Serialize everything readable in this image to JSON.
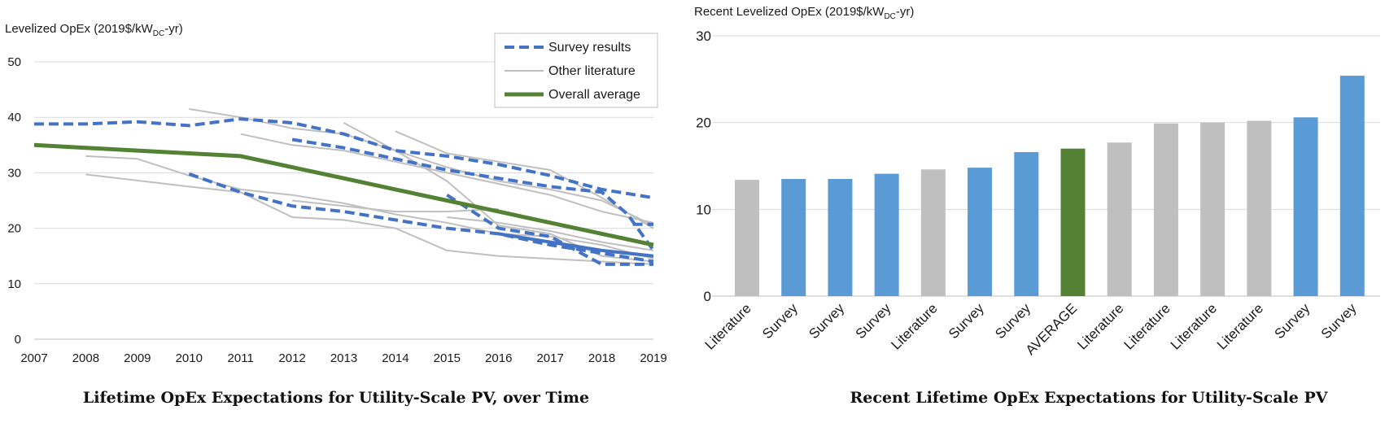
{
  "charts": [
    {
      "type": "line",
      "ylabel_main": "Levelized OpEx (2019$/kW",
      "ylabel_sub": "DC",
      "ylabel_tail": "-yr)",
      "caption": "Lifetime OpEx Expectations for Utility-Scale PV, over Time",
      "xlim": [
        2007,
        2019
      ],
      "ylim": [
        0,
        50
      ],
      "x_ticks": [
        "2007",
        "2008",
        "2009",
        "2010",
        "2011",
        "2012",
        "2013",
        "2014",
        "2015",
        "2016",
        "2017",
        "2018",
        "2019"
      ],
      "y_ticks": [
        "0",
        "10",
        "20",
        "30",
        "40",
        "50"
      ],
      "legend": {
        "placement": "top-right",
        "entries": [
          {
            "label": "Survey results",
            "style": "survey"
          },
          {
            "label": "Other literature",
            "style": "literature"
          },
          {
            "label": "Overall average",
            "style": "average"
          }
        ]
      },
      "colors": {
        "survey": "#4472c4",
        "literature": "#bfbfbf",
        "average": "#548235",
        "grid": "#d9d9d9"
      },
      "series": [
        {
          "group": "literature",
          "points": [
            [
              2008,
              33
            ],
            [
              2009,
              32.5
            ],
            [
              2010,
              29.5
            ],
            [
              2011,
              27
            ],
            [
              2012,
              26
            ],
            [
              2013,
              24.5
            ],
            [
              2014,
              22.5
            ],
            [
              2015,
              21
            ],
            [
              2016,
              19
            ],
            [
              2017,
              18.5
            ],
            [
              2018,
              17
            ],
            [
              2019,
              14.5
            ]
          ]
        },
        {
          "group": "literature",
          "points": [
            [
              2008,
              29.7
            ],
            [
              2010,
              27.5
            ],
            [
              2011,
              26.5
            ],
            [
              2012,
              22
            ],
            [
              2013,
              21.5
            ],
            [
              2014,
              20
            ],
            [
              2015,
              16
            ],
            [
              2016,
              15
            ],
            [
              2017,
              14.5
            ],
            [
              2018,
              14
            ],
            [
              2019,
              13.5
            ]
          ]
        },
        {
          "group": "literature",
          "points": [
            [
              2010,
              41.5
            ],
            [
              2011,
              40
            ],
            [
              2012,
              38
            ],
            [
              2013,
              37
            ],
            [
              2014,
              34
            ],
            [
              2015,
              31
            ],
            [
              2016,
              28.5
            ],
            [
              2017,
              27
            ],
            [
              2018,
              25
            ],
            [
              2019,
              20.5
            ]
          ]
        },
        {
          "group": "literature",
          "points": [
            [
              2011,
              37
            ],
            [
              2012,
              35
            ],
            [
              2013,
              34
            ],
            [
              2014,
              32
            ],
            [
              2015,
              30
            ],
            [
              2016,
              28
            ],
            [
              2017,
              26
            ],
            [
              2018,
              23
            ],
            [
              2019,
              21
            ]
          ]
        },
        {
          "group": "literature",
          "points": [
            [
              2014,
              37.5
            ],
            [
              2015,
              33.5
            ],
            [
              2016,
              32
            ],
            [
              2017,
              30.5
            ],
            [
              2018,
              25.5
            ],
            [
              2019,
              20
            ]
          ]
        },
        {
          "group": "literature",
          "points": [
            [
              2012,
              25
            ],
            [
              2013,
              24
            ],
            [
              2014,
              23
            ],
            [
              2015,
              23
            ],
            [
              2016,
              23.5
            ]
          ]
        },
        {
          "group": "literature",
          "points": [
            [
              2013,
              39
            ],
            [
              2014,
              34
            ],
            [
              2015,
              28.5
            ],
            [
              2016,
              20.5
            ],
            [
              2017,
              19
            ],
            [
              2018,
              15
            ],
            [
              2019,
              14
            ]
          ]
        },
        {
          "group": "literature",
          "points": [
            [
              2015,
              22
            ],
            [
              2016,
              21
            ],
            [
              2017,
              19.5
            ],
            [
              2018,
              17.5
            ],
            [
              2019,
              16
            ]
          ]
        },
        {
          "group": "survey",
          "dashed": true,
          "points": [
            [
              2007,
              38.8
            ],
            [
              2008,
              38.8
            ],
            [
              2009,
              39.2
            ],
            [
              2010,
              38.5
            ],
            [
              2011,
              39.7
            ],
            [
              2012,
              39
            ],
            [
              2013,
              37
            ],
            [
              2014,
              34
            ],
            [
              2015,
              33
            ],
            [
              2016,
              31.5
            ],
            [
              2017,
              29.5
            ],
            [
              2018,
              27
            ],
            [
              2019,
              25.5
            ]
          ]
        },
        {
          "group": "survey",
          "dashed": true,
          "points": [
            [
              2012,
              36
            ],
            [
              2013,
              34.5
            ],
            [
              2014,
              32.5
            ],
            [
              2015,
              30.5
            ],
            [
              2016,
              29
            ],
            [
              2017,
              27.5
            ],
            [
              2018,
              26.5
            ],
            [
              2018.5,
              22.5
            ],
            [
              2019,
              16
            ]
          ]
        },
        {
          "group": "survey",
          "dashed": true,
          "points": [
            [
              2010,
              29.8
            ],
            [
              2011,
              26.5
            ],
            [
              2012,
              24
            ],
            [
              2013,
              23
            ],
            [
              2014,
              21.5
            ],
            [
              2015,
              20
            ],
            [
              2016,
              19
            ],
            [
              2017,
              17
            ],
            [
              2018,
              15.5
            ],
            [
              2019,
              14
            ]
          ]
        },
        {
          "group": "survey",
          "dashed": true,
          "points": [
            [
              2015,
              26
            ],
            [
              2016,
              20
            ],
            [
              2017,
              18.5
            ],
            [
              2018,
              13.5
            ],
            [
              2019,
              13.5
            ]
          ]
        },
        {
          "group": "survey",
          "dashed": true,
          "points": [
            [
              2018.6,
              20.7
            ],
            [
              2019,
              20.7
            ]
          ]
        },
        {
          "group": "survey",
          "dashed": false,
          "points": [
            [
              2016,
              19
            ],
            [
              2017,
              17.5
            ],
            [
              2018,
              16
            ],
            [
              2019,
              15
            ]
          ]
        },
        {
          "group": "average",
          "points": [
            [
              2007,
              35
            ],
            [
              2008,
              34.5
            ],
            [
              2009,
              34
            ],
            [
              2010,
              33.5
            ],
            [
              2011,
              33
            ],
            [
              2012,
              31
            ],
            [
              2013,
              29
            ],
            [
              2014,
              27
            ],
            [
              2015,
              25
            ],
            [
              2016,
              23
            ],
            [
              2017,
              21
            ],
            [
              2018,
              19
            ],
            [
              2019,
              17
            ]
          ]
        }
      ]
    },
    {
      "type": "bar",
      "ylabel_main": "Recent Levelized OpEx (2019$/kW",
      "ylabel_sub": "DC",
      "ylabel_tail": "-yr)",
      "caption": "Recent Lifetime OpEx Expectations for Utility-Scale PV",
      "ylim": [
        0,
        30
      ],
      "y_ticks": [
        "0",
        "10",
        "20",
        "30"
      ],
      "colors": {
        "Literature": "#bfbfbf",
        "Survey": "#5b9bd5",
        "AVERAGE": "#548235",
        "grid": "#d9d9d9"
      },
      "categories": [
        "Literature",
        "Survey",
        "Survey",
        "Survey",
        "Literature",
        "Survey",
        "Survey",
        "AVERAGE",
        "Literature",
        "Literature",
        "Literature",
        "Literature",
        "Survey",
        "Survey"
      ],
      "values": [
        13.4,
        13.5,
        13.5,
        14.1,
        14.6,
        14.8,
        16.6,
        17.0,
        17.7,
        19.9,
        20.0,
        20.2,
        20.6,
        25.4
      ]
    }
  ]
}
